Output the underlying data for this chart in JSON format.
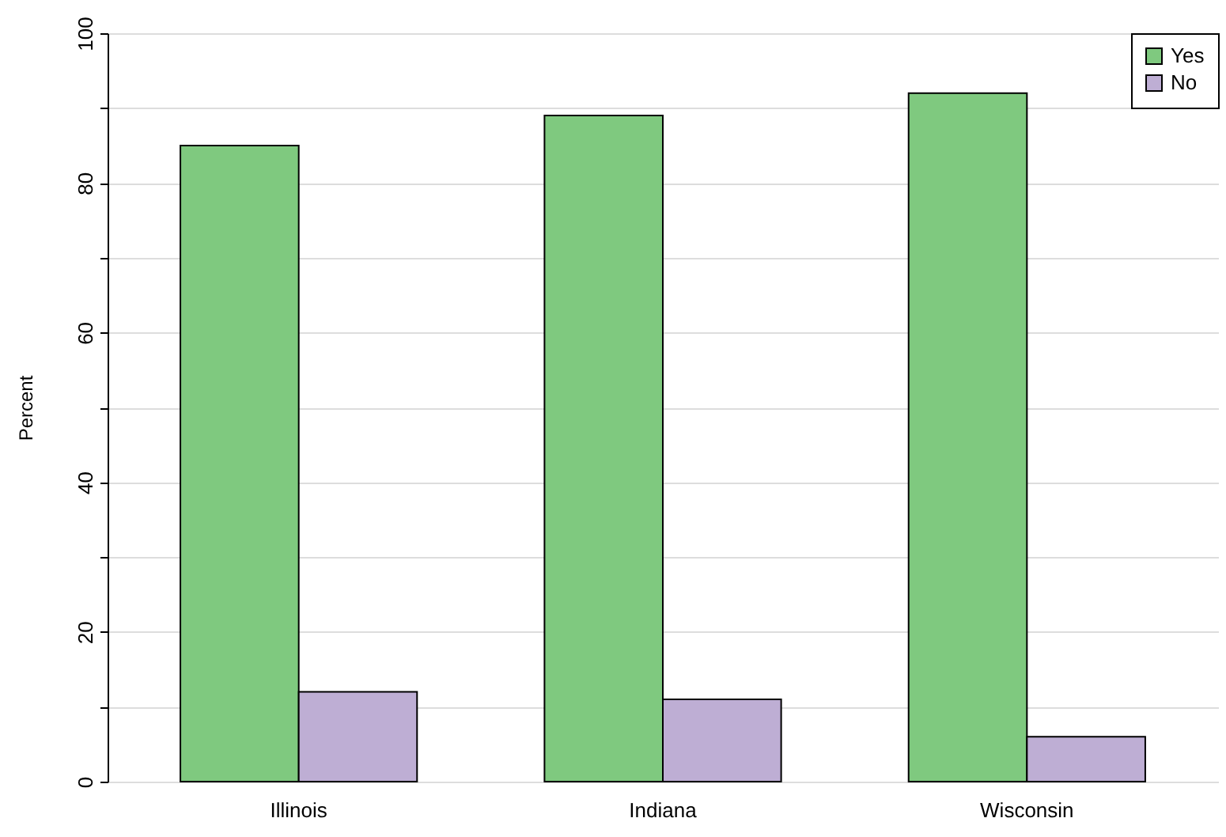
{
  "chart_data": {
    "type": "bar",
    "ylabel": "Percent",
    "categories": [
      "Illinois",
      "Indiana",
      "Wisconsin"
    ],
    "series": [
      {
        "name": "Yes",
        "color": "#7fc97f",
        "values": [
          85,
          89,
          92
        ]
      },
      {
        "name": "No",
        "color": "#beaed4",
        "values": [
          12,
          11,
          6
        ]
      }
    ],
    "ylim": [
      0,
      100
    ],
    "yticks": [
      0,
      {
        "value": 10,
        "label": null
      },
      20,
      {
        "value": 30,
        "label": null
      },
      40,
      {
        "value": 50,
        "label": null
      },
      60,
      {
        "value": 70,
        "label": null
      },
      80,
      {
        "value": 90,
        "label": null
      },
      100
    ],
    "grid": true,
    "legend": "top right"
  }
}
